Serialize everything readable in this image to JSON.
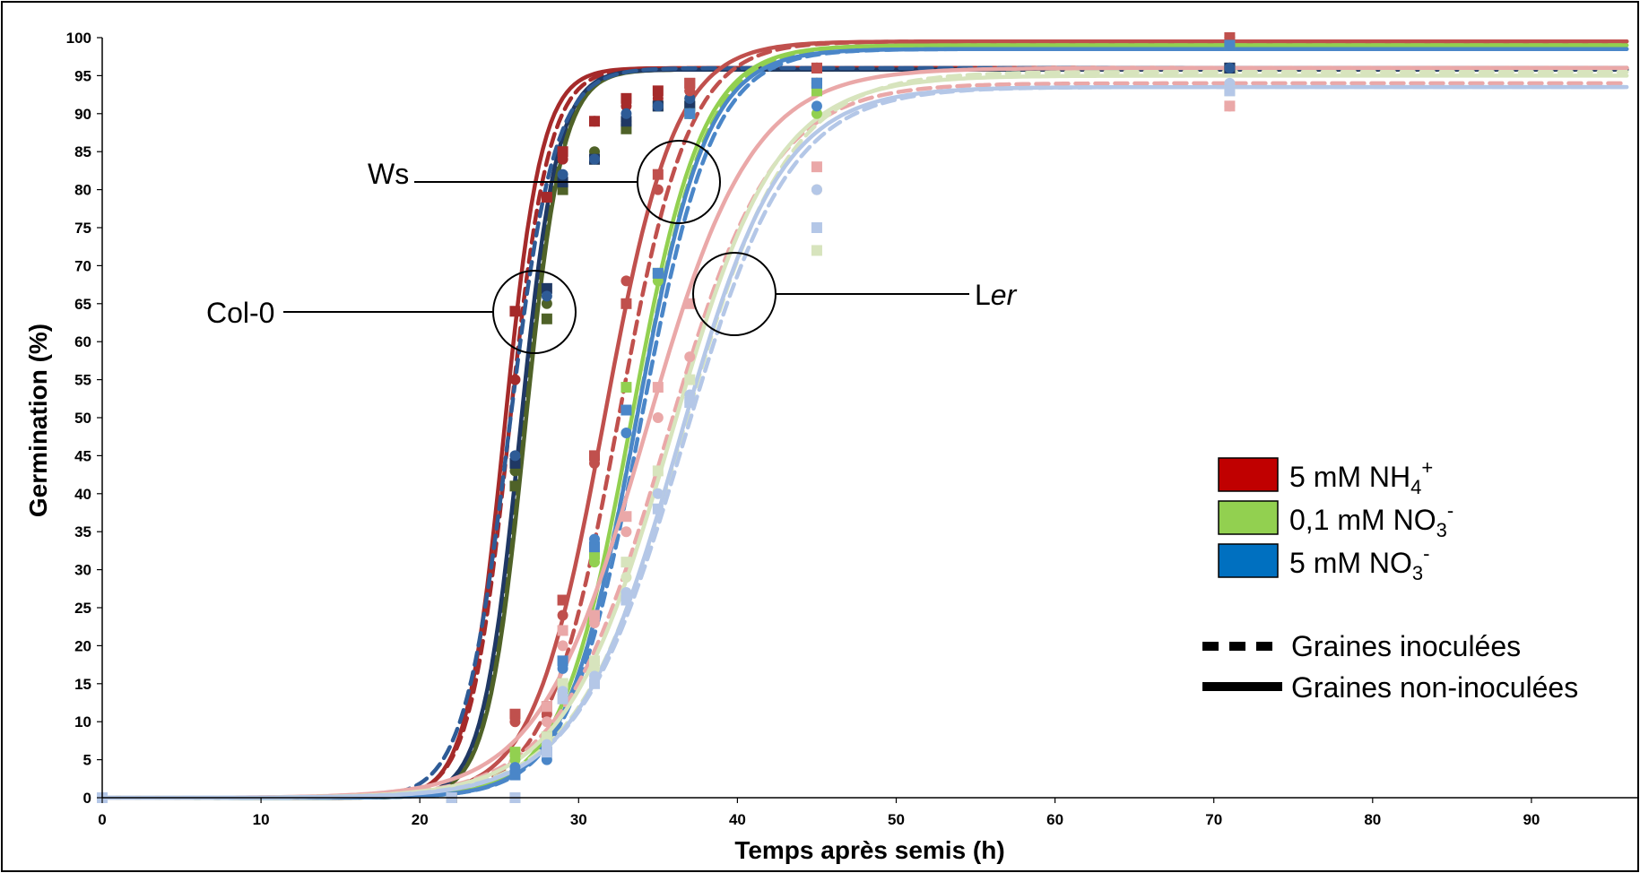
{
  "chart_data": {
    "type": "line",
    "xlabel": "Temps après semis (h)",
    "ylabel": "Germination (%)",
    "xlim": [
      0,
      96
    ],
    "ylim": [
      0,
      100
    ],
    "x_ticks": [
      0,
      10,
      20,
      30,
      40,
      50,
      60,
      70,
      80,
      90
    ],
    "y_ticks": [
      0,
      5,
      10,
      15,
      20,
      25,
      30,
      35,
      40,
      45,
      50,
      55,
      60,
      65,
      70,
      75,
      80,
      85,
      90,
      95,
      100
    ],
    "grid": false,
    "legend_position": "right",
    "legend": {
      "colors": [
        {
          "label": "5 mM NH",
          "sub": "4",
          "sup": "+",
          "color": "#c00000"
        },
        {
          "label": "0,1 mM NO",
          "sub": "3",
          "sup": "-",
          "color": "#92d050"
        },
        {
          "label": "5 mM NO",
          "sub": "3",
          "sup": "-",
          "color": "#0070c0"
        }
      ],
      "styles": [
        {
          "label": "Graines inoculées",
          "dash": true
        },
        {
          "label": "Graines non-inoculées",
          "dash": false
        }
      ]
    },
    "genotype_labels": [
      {
        "text": "Ws",
        "italic_part": ""
      },
      {
        "text": "Col-0",
        "italic_part": ""
      },
      {
        "text": "L",
        "italic_part": "er"
      }
    ],
    "sample_times": [
      0,
      22,
      26,
      28,
      29,
      31,
      33,
      35,
      37,
      45,
      71
    ],
    "series": [
      {
        "name": "Col-0 5 mM NH4+ non-inoculées",
        "color": "#a52a2a",
        "dash": false,
        "max": 96,
        "t50": 25.3,
        "k": 0.85,
        "points": [
          0,
          0,
          64,
          79,
          85,
          89,
          92,
          93,
          94,
          96,
          96
        ]
      },
      {
        "name": "Col-0 5 mM NH4+ inoculées",
        "color": "#a52a2a",
        "dash": true,
        "max": 96,
        "t50": 25.6,
        "k": 0.8,
        "points": [
          0,
          0,
          55,
          79,
          84,
          89,
          91,
          92,
          93,
          96,
          96
        ]
      },
      {
        "name": "Col-0 0,1 mM NO3- non-inoculées",
        "color": "#4f6228",
        "dash": false,
        "max": 95.8,
        "t50": 26.6,
        "k": 0.85,
        "points": [
          0,
          0,
          41,
          63,
          80,
          84,
          88,
          91,
          91,
          94,
          96
        ]
      },
      {
        "name": "Col-0 0,1 mM NO3- inoculées",
        "color": "#4f6228",
        "dash": true,
        "max": 95.8,
        "t50": 26.4,
        "k": 0.85,
        "points": [
          0,
          0,
          43,
          65,
          81,
          85,
          89,
          91,
          92,
          94,
          96
        ]
      },
      {
        "name": "Col-0 5 mM NO3- non-inoculées",
        "color": "#1f3864",
        "dash": false,
        "max": 95.8,
        "t50": 26.3,
        "k": 0.85,
        "points": [
          0,
          0,
          44,
          67,
          81,
          84,
          89,
          91,
          91,
          94,
          96
        ]
      },
      {
        "name": "Col-0 5 mM NO3- inoculées",
        "color": "#2e5b96",
        "dash": true,
        "max": 96,
        "t50": 25.6,
        "k": 0.7,
        "points": [
          0,
          0,
          45,
          66,
          82,
          84,
          90,
          91,
          92,
          94,
          96
        ]
      },
      {
        "name": "Ws 5 mM NH4+ non-inoculées",
        "color": "#c0504d",
        "dash": false,
        "max": 99.5,
        "t50": 31.6,
        "k": 0.45,
        "points": [
          0,
          0,
          11,
          12,
          26,
          45,
          65,
          82,
          94,
          96,
          100
        ]
      },
      {
        "name": "Ws 5 mM NH4+ inoculées",
        "color": "#c0504d",
        "dash": true,
        "max": 99.5,
        "t50": 32.5,
        "k": 0.45,
        "points": [
          0,
          0,
          10,
          11,
          24,
          44,
          68,
          80,
          93,
          96,
          100
        ]
      },
      {
        "name": "Ws 0,1 mM NO3- non-inoculées",
        "color": "#92d050",
        "dash": false,
        "max": 99,
        "t50": 33.3,
        "k": 0.45,
        "points": [
          0,
          0,
          6,
          8,
          15,
          32,
          54,
          69,
          90,
          93,
          99
        ]
      },
      {
        "name": "Ws 0,1 mM NO3- inoculées",
        "color": "#92d050",
        "dash": true,
        "max": 99,
        "t50": 33.6,
        "k": 0.45,
        "points": [
          0,
          0,
          5,
          7,
          14,
          31,
          51,
          68,
          90,
          90,
          99
        ]
      },
      {
        "name": "Ws 5 mM NO3- non-inoculées",
        "color": "#4a86c8",
        "dash": false,
        "max": 98.5,
        "t50": 33.6,
        "k": 0.45,
        "points": [
          0,
          0,
          3,
          6,
          18,
          33,
          51,
          69,
          90,
          94,
          99
        ]
      },
      {
        "name": "Ws 5 mM NO3- inoculées",
        "color": "#4a86c8",
        "dash": true,
        "max": 98.5,
        "t50": 33.9,
        "k": 0.44,
        "points": [
          0,
          0,
          4,
          5,
          17,
          34,
          48,
          69,
          90,
          91,
          99
        ]
      },
      {
        "name": "Ler 5 mM NH4+ non-inoculées",
        "color": "#eaa8a8",
        "dash": false,
        "max": 96,
        "t50": 34.2,
        "k": 0.3,
        "points": [
          0,
          0,
          0,
          12,
          22,
          24,
          37,
          54,
          65,
          83,
          91
        ]
      },
      {
        "name": "Ler 5 mM NH4+ inoculées",
        "color": "#eaa8a8",
        "dash": true,
        "max": 94,
        "t50": 35.5,
        "k": 0.3,
        "points": [
          0,
          0,
          0,
          10,
          20,
          23,
          35,
          50,
          58,
          80,
          91
        ]
      },
      {
        "name": "Ler 0,1 mM NO3- non-inoculées",
        "color": "#d7e4bd",
        "dash": false,
        "max": 95,
        "t50": 35.8,
        "k": 0.3,
        "points": [
          0,
          0,
          0,
          8,
          15,
          18,
          31,
          43,
          55,
          72,
          93
        ]
      },
      {
        "name": "Ler 0,1 mM NO3- inoculées",
        "color": "#d7e4bd",
        "dash": true,
        "max": 95.5,
        "t50": 36.5,
        "k": 0.3,
        "points": [
          0,
          0,
          0,
          7,
          14,
          17,
          29,
          40,
          52,
          80,
          94
        ]
      },
      {
        "name": "Ler 5 mM NO3- non-inoculées",
        "color": "#b4c7e7",
        "dash": false,
        "max": 93.5,
        "t50": 36.3,
        "k": 0.31,
        "points": [
          0,
          0,
          0,
          6,
          13,
          15,
          26,
          38,
          52,
          75,
          93
        ]
      },
      {
        "name": "Ler 5 mM NO3- inoculées",
        "color": "#b4c7e7",
        "dash": true,
        "max": 93.5,
        "t50": 36.6,
        "k": 0.3,
        "points": [
          0,
          0,
          0,
          7,
          14,
          16,
          27,
          40,
          53,
          80,
          94
        ]
      }
    ]
  }
}
